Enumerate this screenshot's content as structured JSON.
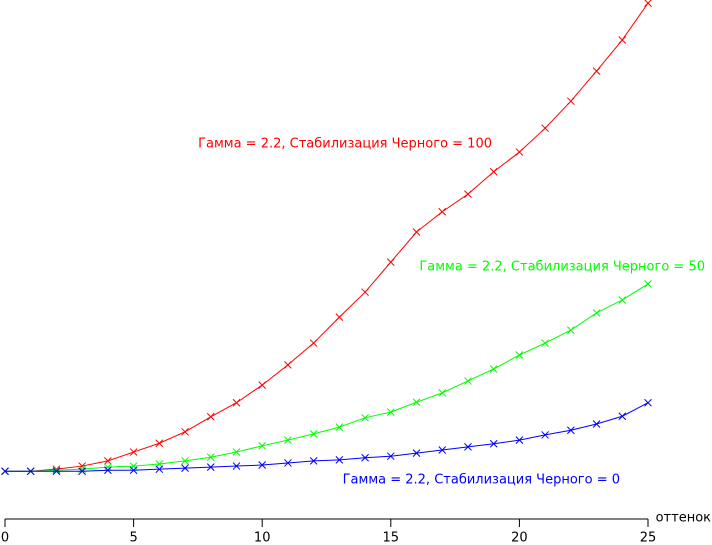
{
  "chart_data": {
    "type": "line",
    "x": [
      0,
      1,
      2,
      3,
      4,
      5,
      6,
      7,
      8,
      9,
      10,
      11,
      12,
      13,
      14,
      15,
      16,
      17,
      18,
      19,
      20,
      21,
      22,
      23,
      24,
      25
    ],
    "x_label": "оттенок",
    "xlim": [
      0,
      25
    ],
    "xticks": [
      0,
      5,
      10,
      15,
      20,
      25
    ],
    "ylim": [
      0,
      100
    ],
    "series": [
      {
        "name": "Гамма = 2.2, Стабилизация Черного = 100",
        "color": "#ff0000",
        "values": [
          9.2,
          9.2,
          9.6,
          10.2,
          11.2,
          12.9,
          14.6,
          16.8,
          19.7,
          22.4,
          25.8,
          29.7,
          33.9,
          38.9,
          43.7,
          49.5,
          55.3,
          59.2,
          62.6,
          66.9,
          70.7,
          75.3,
          80.5,
          86.3,
          92.3,
          99.4
        ]
      },
      {
        "name": "Гамма = 2.2, Стабилизация Черного = 50",
        "color": "#00ff00",
        "values": [
          9.2,
          9.2,
          9.4,
          9.6,
          10.0,
          10.2,
          10.6,
          11.2,
          11.9,
          12.9,
          14.1,
          15.2,
          16.4,
          17.7,
          19.5,
          20.6,
          22.5,
          24.3,
          26.6,
          28.9,
          31.6,
          33.9,
          36.4,
          39.7,
          42.2,
          45.3
        ]
      },
      {
        "name": "Гамма = 2.2, Стабилизация Черного = 0",
        "color": "#0000ff",
        "values": [
          9.2,
          9.2,
          9.2,
          9.2,
          9.4,
          9.4,
          9.6,
          9.8,
          10.0,
          10.2,
          10.4,
          10.8,
          11.2,
          11.4,
          11.8,
          12.1,
          12.7,
          13.3,
          13.9,
          14.5,
          15.2,
          16.2,
          17.1,
          18.3,
          19.8,
          22.4
        ]
      }
    ]
  }
}
